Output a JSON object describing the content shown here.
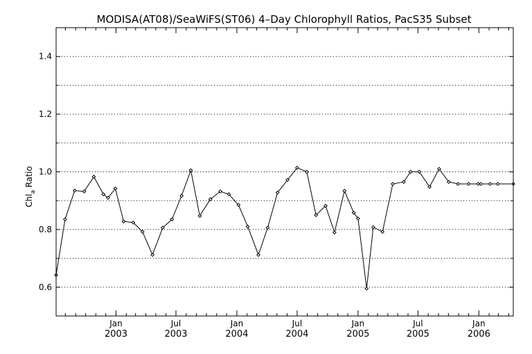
{
  "chart_data": {
    "type": "line",
    "title": "MODISA(AT08)/SeaWiFS(ST06) 4–Day Chlorophyll Ratios, PacS35 Subset",
    "ylabel_main": "Chl",
    "ylabel_sub": "a",
    "ylabel_tail": " Ratio",
    "xlabel": "",
    "ylim": [
      0.5,
      1.5
    ],
    "xlim": [
      "2002-07-04",
      "2006-04-15"
    ],
    "yticks": [
      {
        "value": 0.6,
        "label": "0.6"
      },
      {
        "value": 0.8,
        "label": "0.8"
      },
      {
        "value": 1.0,
        "label": "1.0"
      },
      {
        "value": 1.2,
        "label": "1.2"
      },
      {
        "value": 1.4,
        "label": "1.4"
      }
    ],
    "grid_y": [
      0.6,
      0.7,
      0.8,
      0.9,
      1.0,
      1.1,
      1.2,
      1.3,
      1.4
    ],
    "xticks": [
      {
        "date": "2003-01-01",
        "month": "Jan",
        "year": "2003"
      },
      {
        "date": "2003-07-01",
        "month": "Jul",
        "year": "2003"
      },
      {
        "date": "2004-01-01",
        "month": "Jan",
        "year": "2004"
      },
      {
        "date": "2004-07-01",
        "month": "Jul",
        "year": "2004"
      },
      {
        "date": "2005-01-01",
        "month": "Jan",
        "year": "2005"
      },
      {
        "date": "2005-07-01",
        "month": "Jul",
        "year": "2005"
      },
      {
        "date": "2006-01-01",
        "month": "Jan",
        "year": "2006"
      }
    ],
    "minor_xticks": [
      "2002-08-01",
      "2002-09-01",
      "2002-10-01",
      "2002-11-01",
      "2002-12-01",
      "2003-02-01",
      "2003-03-01",
      "2003-04-01",
      "2003-05-01",
      "2003-06-01",
      "2003-08-01",
      "2003-09-01",
      "2003-10-01",
      "2003-11-01",
      "2003-12-01",
      "2004-02-01",
      "2004-03-01",
      "2004-04-01",
      "2004-05-01",
      "2004-06-01",
      "2004-08-01",
      "2004-09-01",
      "2004-10-01",
      "2004-11-01",
      "2004-12-01",
      "2005-02-01",
      "2005-03-01",
      "2005-04-01",
      "2005-05-01",
      "2005-06-01",
      "2005-08-01",
      "2005-09-01",
      "2005-10-01",
      "2005-11-01",
      "2005-12-01",
      "2006-02-01",
      "2006-03-01",
      "2006-04-01"
    ],
    "series": [
      {
        "color": "#000000",
        "marker": "diamond",
        "x": [
          "2002-07-04",
          "2002-07-31",
          "2002-08-29",
          "2002-09-27",
          "2002-10-26",
          "2002-11-24",
          "2002-12-08",
          "2002-12-30",
          "2003-01-24",
          "2003-02-22",
          "2003-03-22",
          "2003-04-21",
          "2003-05-22",
          "2003-06-19",
          "2003-07-18",
          "2003-08-15",
          "2003-09-11",
          "2003-10-13",
          "2003-11-12",
          "2003-12-08",
          "2004-01-06",
          "2004-02-03",
          "2004-03-06",
          "2004-04-03",
          "2004-05-03",
          "2004-06-02",
          "2004-07-01",
          "2004-07-30",
          "2004-08-27",
          "2004-09-25",
          "2004-10-22",
          "2004-11-21",
          "2004-12-19",
          "2005-01-01",
          "2005-01-27",
          "2005-02-16",
          "2005-03-16",
          "2005-04-16",
          "2005-05-19",
          "2005-06-09",
          "2005-07-05",
          "2005-08-05",
          "2005-09-03",
          "2005-10-02",
          "2005-10-30",
          "2005-12-01",
          "2005-12-30",
          "2006-01-07",
          "2006-02-04",
          "2006-02-27",
          "2006-04-15"
        ],
        "values": [
          0.642,
          0.835,
          0.935,
          0.932,
          0.983,
          0.922,
          0.91,
          0.942,
          0.828,
          0.824,
          0.792,
          0.712,
          0.806,
          0.835,
          0.917,
          1.005,
          0.847,
          0.905,
          0.932,
          0.922,
          0.885,
          0.81,
          0.712,
          0.806,
          0.928,
          0.972,
          1.014,
          1.0,
          0.85,
          0.882,
          0.79,
          0.934,
          0.858,
          0.838,
          0.595,
          0.808,
          0.792,
          0.958,
          0.965,
          1.0,
          1.0,
          0.948,
          1.01,
          0.965,
          0.958,
          0.958,
          0.958,
          0.958,
          0.958,
          0.958,
          0.958
        ]
      }
    ]
  }
}
